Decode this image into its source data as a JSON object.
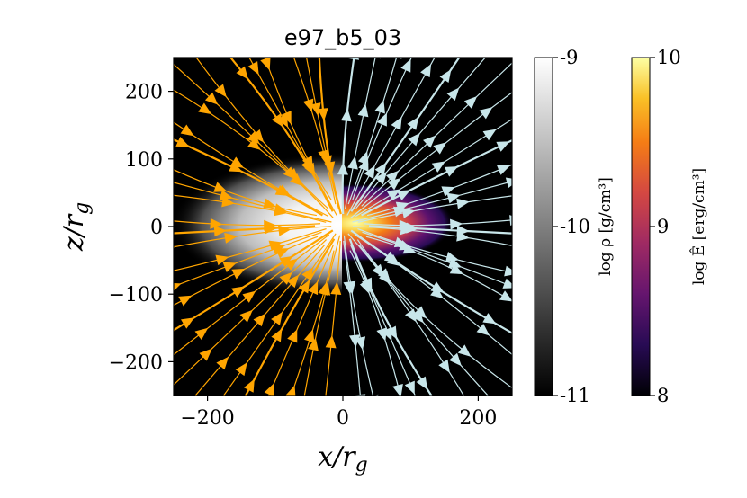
{
  "chart_data": {
    "type": "heatmap",
    "title": "e97_b5_03",
    "xlabel": "x/r_g",
    "ylabel": "z/r_g",
    "xlim": [
      -250,
      250
    ],
    "ylim": [
      -250,
      250
    ],
    "x_ticks": [
      -200,
      0,
      200
    ],
    "x_tick_labels": [
      "−200",
      "0",
      "200"
    ],
    "y_ticks": [
      200,
      100,
      0,
      -100,
      -200
    ],
    "y_tick_labels": [
      "200",
      "100",
      "0",
      "−100",
      "−200"
    ],
    "grid": false,
    "panels": [
      {
        "side": "left",
        "quantity": "log rho",
        "colormap": "gray",
        "streamline_color": "#ffa500"
      },
      {
        "side": "right",
        "quantity": "log E-hat",
        "colormap": "inferno",
        "streamline_color": "#c8e6ea"
      }
    ],
    "colorbars": [
      {
        "label_text": "log ρ [g/cm³]",
        "range": [
          -11,
          -9
        ],
        "ticks": [
          -9,
          -10,
          -11
        ],
        "tick_labels": [
          "-9",
          "-10",
          "-11"
        ],
        "colormap": "gray"
      },
      {
        "label_text": "log Ê [erg/cm³]",
        "range": [
          8,
          10
        ],
        "ticks": [
          10,
          9,
          8
        ],
        "tick_labels": [
          "10",
          "9",
          "8"
        ],
        "colormap": "inferno"
      }
    ]
  }
}
